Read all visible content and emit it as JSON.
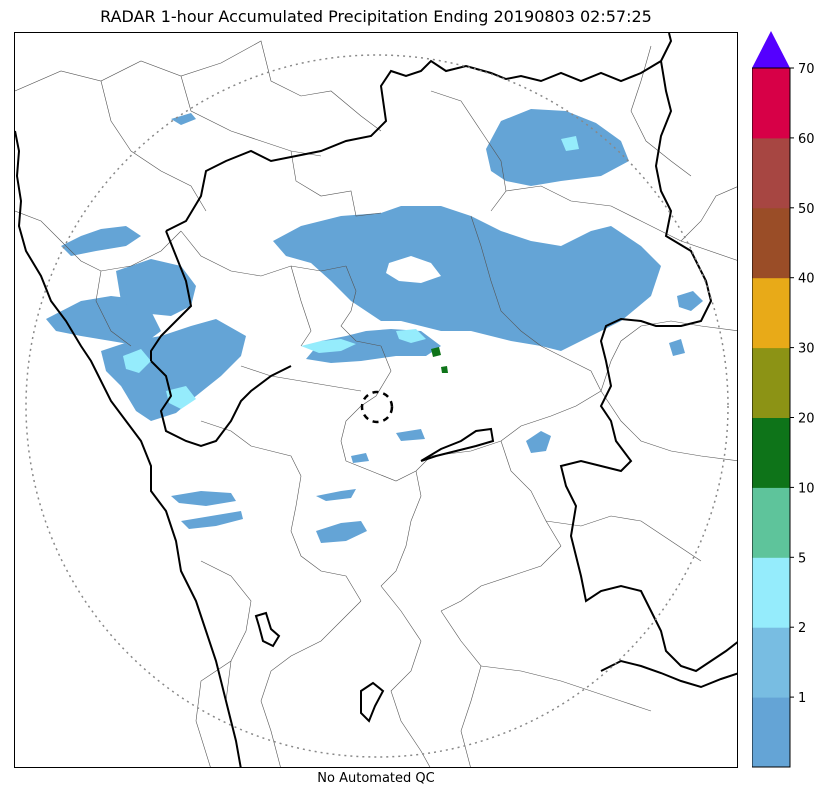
{
  "title": "RADAR 1-hour Accumulated Precipitation Ending 20190803 02:57:25",
  "footer": "No Automated QC",
  "colorbar": {
    "labels": [
      "1",
      "2",
      "5",
      "10",
      "20",
      "30",
      "40",
      "50",
      "60",
      "70"
    ],
    "bins": [
      {
        "color": "#64a4d6"
      },
      {
        "color": "#78bde2"
      },
      {
        "color": "#95ecfc"
      },
      {
        "color": "#5ec49b"
      },
      {
        "color": "#0e7419"
      },
      {
        "color": "#8c9315"
      },
      {
        "color": "#e8aa18"
      },
      {
        "color": "#9a4d27"
      },
      {
        "color": "#a74642"
      },
      {
        "color": "#d70047"
      }
    ],
    "extend_color": "#5400ff"
  },
  "colors": {
    "rain_light": "#64a4d6",
    "rain_cyan": "#95ecfc",
    "rain_green": "#0e7419",
    "coast_line": "#000000",
    "border_line": "#000000",
    "district_line": "#555555",
    "range_ring": "#888888"
  }
}
